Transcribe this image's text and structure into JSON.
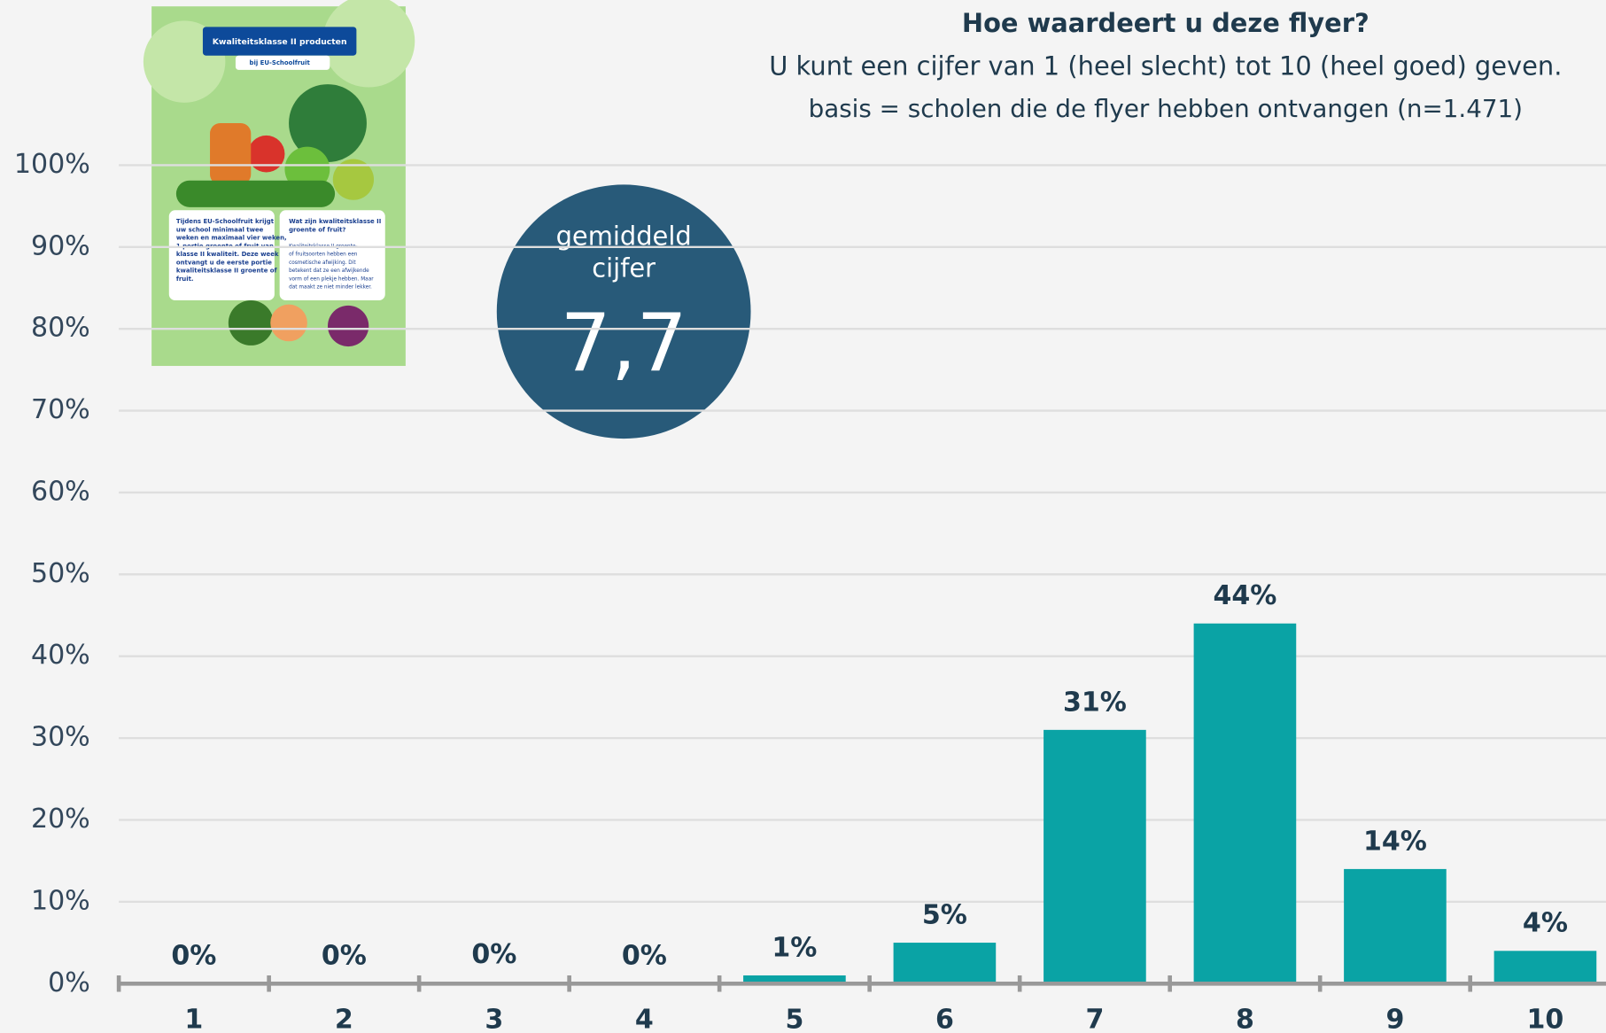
{
  "chart_data": {
    "type": "bar",
    "title": "Hoe waardeert u deze flyer?",
    "subtitle": "U kunt een cijfer van 1 (heel slecht) tot 10 (heel goed) geven.",
    "note": "basis = scholen die de flyer hebben ontvangen (n=1.471)",
    "badge_label": [
      "gemiddeld",
      "cijfer"
    ],
    "badge_value": "7,7",
    "categories": [
      "1",
      "2",
      "3",
      "4",
      "5",
      "6",
      "7",
      "8",
      "9",
      "10"
    ],
    "values": [
      0,
      0,
      0.2,
      0,
      1,
      5,
      31,
      44,
      14,
      4
    ],
    "value_labels": [
      "0%",
      "0%",
      "0%",
      "0%",
      "1%",
      "5%",
      "31%",
      "44%",
      "14%",
      "4%"
    ],
    "color": "#0aa3a5",
    "ylim": [
      0,
      100
    ],
    "yticks": [
      {
        "value": 0,
        "label": "0%"
      },
      {
        "value": 10,
        "label": "10%"
      },
      {
        "value": 20,
        "label": "20%"
      },
      {
        "value": 30,
        "label": "30%"
      },
      {
        "value": 40,
        "label": "40%"
      },
      {
        "value": 50,
        "label": "50%"
      },
      {
        "value": 60,
        "label": "60%"
      },
      {
        "value": 70,
        "label": "70%"
      },
      {
        "value": 80,
        "label": "80%"
      },
      {
        "value": 90,
        "label": "90%"
      },
      {
        "value": 100,
        "label": "100%"
      }
    ],
    "grid": true
  },
  "flyer": {
    "title": "Kwaliteitsklasse II producten",
    "subtitle": "bij EU-Schoolfruit",
    "box1": [
      "Tijdens EU-Schoolfruit krijgt",
      "uw school minimaal twee",
      "weken en maximaal vier weken,",
      "1 portie groente of fruit van",
      "klasse II kwaliteit. Deze week",
      "ontvangt u de eerste portie",
      "kwaliteitsklasse II groente of",
      "fruit."
    ],
    "box2_heading": [
      "Wat zijn kwaliteitsklasse II",
      "groente of fruit?"
    ],
    "box2": [
      "Kwaliteitsklasse II groente-",
      "of fruitsoorten hebben een",
      "cosmetische afwijking. Dit",
      "betekent dat ze een afwijkende",
      "vorm of een plekje hebben. Maar",
      "dat maakt ze niet minder lekker."
    ]
  }
}
